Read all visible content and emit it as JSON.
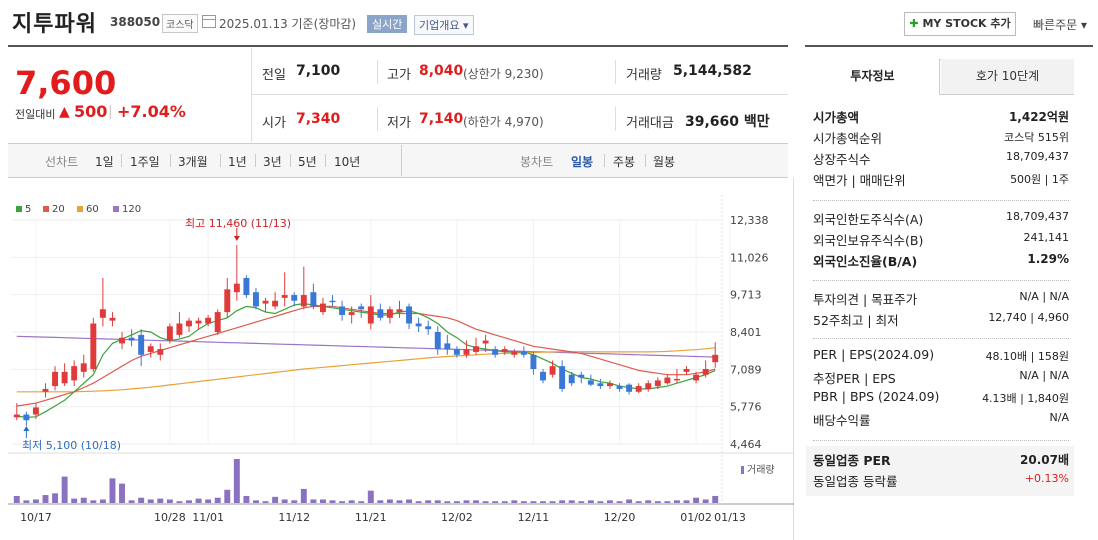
{
  "header": {
    "stock_name": "지투파워",
    "stock_code": "388050",
    "market": "코스닥",
    "ref_date": "2025.01.13  기준(장마감)",
    "realtime_label": "실시간",
    "company_overview_label": "기업개요 ▾",
    "mystock_label": "MY STOCK 추가",
    "quick_order_label": "빠른주문 ▾"
  },
  "price": {
    "current": "7,600",
    "change_label": "전일대비",
    "change_arrow": "▲",
    "change_amount": "500",
    "change_sep": "|",
    "change_pct": "+7.04%"
  },
  "summary": {
    "prev_close_label": "전일",
    "prev_close": "7,100",
    "high_label": "고가",
    "high": "8,040",
    "upper_limit": "(상한가 9,230)",
    "volume_label": "거래량",
    "volume": "5,144,582",
    "open_label": "시가",
    "open": "7,340",
    "low_label": "저가",
    "low": "7,140",
    "lower_limit": "(하한가 4,970)",
    "amount_label": "거래대금",
    "amount": "39,660 백만"
  },
  "period_tabs": {
    "line_label": "선차트",
    "line_items": [
      "1일",
      "1주일",
      "3개월",
      "1년",
      "3년",
      "5년",
      "10년"
    ],
    "candle_label": "봉차트",
    "candle_items": [
      "일봉",
      "주봉",
      "월봉"
    ],
    "candle_selected": "일봉"
  },
  "chart_data": {
    "type": "candlestick",
    "ma_legend": [
      {
        "name": "5",
        "color": "#3aa33a"
      },
      {
        "name": "20",
        "color": "#e05a4e"
      },
      {
        "name": "60",
        "color": "#e8a23a"
      },
      {
        "name": "120",
        "color": "#9b74c9"
      }
    ],
    "y_ticks": [
      "12,338",
      "11,026",
      "9,713",
      "8,401",
      "7,089",
      "5,776",
      "4,464"
    ],
    "ylim": [
      4464,
      12338
    ],
    "x_labels": [
      "10/17",
      "10/28",
      "11/01",
      "11/12",
      "11/21",
      "12/02",
      "12/11",
      "12/20",
      "01/02",
      "01/13"
    ],
    "annotation_high": "최고 11,460 (11/13)",
    "annotation_low": "최저 5,100 (10/18)",
    "volume_label": "거래량",
    "candles": [
      [
        5400,
        5900,
        5300,
        5500
      ],
      [
        5500,
        5600,
        5100,
        5300
      ],
      [
        5500,
        5900,
        5350,
        5750
      ],
      [
        6300,
        6600,
        6100,
        6400
      ],
      [
        6500,
        7200,
        6350,
        7000
      ],
      [
        6600,
        7300,
        6500,
        7000
      ],
      [
        6700,
        7400,
        6500,
        7200
      ],
      [
        7000,
        7600,
        6800,
        7300
      ],
      [
        7100,
        8900,
        7000,
        8700
      ],
      [
        8900,
        10300,
        8600,
        9200
      ],
      [
        8800,
        9100,
        8600,
        8900
      ],
      [
        8000,
        8400,
        7800,
        8200
      ],
      [
        8200,
        8500,
        7900,
        8100
      ],
      [
        8300,
        8500,
        7200,
        7600
      ],
      [
        7700,
        8000,
        7500,
        7900
      ],
      [
        7600,
        8000,
        7400,
        7800
      ],
      [
        8100,
        8700,
        8000,
        8600
      ],
      [
        8300,
        9100,
        8200,
        8700
      ],
      [
        8600,
        8900,
        8400,
        8800
      ],
      [
        8700,
        8900,
        8500,
        8800
      ],
      [
        8700,
        9000,
        8600,
        8900
      ],
      [
        8400,
        9200,
        8300,
        9100
      ],
      [
        9100,
        10300,
        8900,
        9900
      ],
      [
        9800,
        11460,
        9500,
        10100
      ],
      [
        10300,
        10400,
        9600,
        9700
      ],
      [
        9800,
        9950,
        9200,
        9300
      ],
      [
        9400,
        9600,
        9100,
        9500
      ],
      [
        9300,
        9800,
        9200,
        9500
      ],
      [
        9600,
        10500,
        9300,
        9700
      ],
      [
        9700,
        9800,
        9300,
        9500
      ],
      [
        9300,
        10700,
        9200,
        9700
      ],
      [
        9800,
        10100,
        9200,
        9300
      ],
      [
        9100,
        9600,
        9000,
        9400
      ],
      [
        9500,
        9700,
        9300,
        9450
      ],
      [
        9300,
        9500,
        8800,
        9000
      ],
      [
        9000,
        9300,
        8700,
        9100
      ],
      [
        9300,
        9400,
        8900,
        9200
      ],
      [
        8700,
        9700,
        8500,
        9300
      ],
      [
        9200,
        9400,
        8800,
        8900
      ],
      [
        8900,
        9300,
        8700,
        9200
      ],
      [
        9100,
        9500,
        8900,
        9200
      ],
      [
        9300,
        9400,
        8500,
        8700
      ],
      [
        8700,
        8900,
        8400,
        8600
      ],
      [
        8600,
        8800,
        8300,
        8500
      ],
      [
        8400,
        8600,
        7600,
        7800
      ],
      [
        8000,
        8300,
        7600,
        7800
      ],
      [
        7800,
        7900,
        7500,
        7600
      ],
      [
        7600,
        8100,
        7500,
        7800
      ],
      [
        7700,
        8200,
        7600,
        7900
      ],
      [
        8000,
        8300,
        7700,
        8100
      ],
      [
        7800,
        7900,
        7500,
        7600
      ],
      [
        7700,
        7900,
        7600,
        7800
      ],
      [
        7600,
        7800,
        7500,
        7700
      ],
      [
        7700,
        7900,
        7500,
        7600
      ],
      [
        7600,
        7700,
        6900,
        7100
      ],
      [
        7000,
        7100,
        6600,
        6700
      ],
      [
        6900,
        7400,
        6800,
        7200
      ],
      [
        7200,
        7400,
        6300,
        6400
      ],
      [
        6900,
        7000,
        6500,
        6600
      ],
      [
        6900,
        7000,
        6600,
        6800
      ],
      [
        6700,
        6900,
        6500,
        6550
      ],
      [
        6600,
        6750,
        6400,
        6500
      ],
      [
        6500,
        6700,
        6400,
        6600
      ],
      [
        6500,
        6600,
        6300,
        6400
      ],
      [
        6550,
        6600,
        6200,
        6300
      ],
      [
        6300,
        6600,
        6250,
        6500
      ],
      [
        6400,
        6700,
        6300,
        6600
      ],
      [
        6500,
        6800,
        6400,
        6700
      ],
      [
        6600,
        6900,
        6550,
        6800
      ],
      [
        6700,
        7100,
        6600,
        6750
      ],
      [
        7000,
        7200,
        6900,
        7100
      ],
      [
        6700,
        7000,
        6600,
        6900
      ],
      [
        6900,
        7400,
        6800,
        7100
      ],
      [
        7340,
        8040,
        7140,
        7600
      ]
    ],
    "volumes": [
      8,
      3,
      4,
      9,
      11,
      30,
      5,
      6,
      3,
      4,
      28,
      22,
      3,
      6,
      4,
      5,
      4,
      2,
      3,
      5,
      4,
      6,
      15,
      50,
      8,
      3,
      2,
      7,
      4,
      3,
      16,
      4,
      4,
      3,
      2,
      3,
      2,
      14,
      3,
      4,
      3,
      4,
      2,
      3,
      3,
      2,
      2,
      3,
      3,
      2,
      2,
      2,
      3,
      2,
      2,
      2,
      2,
      3,
      3,
      2,
      3,
      2,
      3,
      2,
      4,
      2,
      3,
      2,
      2,
      3,
      3,
      6,
      4,
      8
    ],
    "ma5": [
      5450,
      5400,
      5420,
      5600,
      5800,
      6000,
      6300,
      6600,
      6900,
      7600,
      8000,
      8150,
      8300,
      8450,
      8400,
      8200,
      8100,
      8150,
      8250,
      8500,
      8700,
      8800,
      8900,
      9150,
      9300,
      9250,
      9100,
      9050,
      9200,
      9350,
      9400,
      9350,
      9300,
      9250,
      9200,
      9150,
      9100,
      9050,
      9000,
      9000,
      9100,
      9150,
      9050,
      8900,
      8700,
      8400,
      8200,
      7950,
      7850,
      7800,
      7750,
      7700,
      7700,
      7700,
      7600,
      7450,
      7300,
      7100,
      6950,
      6800,
      6750,
      6650,
      6600,
      6500,
      6450,
      6400,
      6400,
      6450,
      6500,
      6600,
      6700,
      6800,
      6900,
      7050
    ],
    "ma20": [
      5800,
      5850,
      5900,
      6000,
      6100,
      6200,
      6300,
      6450,
      6600,
      6800,
      7000,
      7200,
      7400,
      7550,
      7650,
      7750,
      7850,
      7950,
      8050,
      8150,
      8250,
      8350,
      8450,
      8550,
      8650,
      8750,
      8850,
      8950,
      9050,
      9150,
      9250,
      9300,
      9300,
      9300,
      9250,
      9200,
      9150,
      9100,
      9050,
      9050,
      9050,
      9050,
      9050,
      9000,
      8950,
      8900,
      8800,
      8650,
      8500,
      8400,
      8300,
      8200,
      8100,
      8000,
      7900,
      7850,
      7800,
      7750,
      7700,
      7650,
      7550,
      7450,
      7350,
      7250,
      7150,
      7050,
      7000,
      6950,
      6900,
      6900,
      6900,
      6950,
      7000,
      7100
    ],
    "ma60": [
      6300,
      6300,
      6300,
      6300,
      6300,
      6300,
      6300,
      6310,
      6320,
      6330,
      6350,
      6370,
      6400,
      6430,
      6460,
      6500,
      6540,
      6580,
      6620,
      6660,
      6700,
      6740,
      6780,
      6820,
      6860,
      6900,
      6940,
      6980,
      7020,
      7060,
      7100,
      7130,
      7160,
      7190,
      7220,
      7250,
      7280,
      7310,
      7340,
      7370,
      7400,
      7430,
      7460,
      7490,
      7520,
      7540,
      7560,
      7580,
      7600,
      7620,
      7640,
      7650,
      7660,
      7670,
      7680,
      7690,
      7700,
      7710,
      7710,
      7710,
      7710,
      7700,
      7700,
      7700,
      7700,
      7700,
      7700,
      7710,
      7720,
      7740,
      7760,
      7780,
      7810,
      7850
    ],
    "ma120": [
      8250,
      8240,
      8230,
      8220,
      8210,
      8200,
      8190,
      8180,
      8170,
      8160,
      8150,
      8140,
      8130,
      8120,
      8110,
      8100,
      8090,
      8080,
      8070,
      8060,
      8050,
      8040,
      8030,
      8020,
      8010,
      8000,
      7990,
      7980,
      7970,
      7960,
      7950,
      7940,
      7930,
      7920,
      7910,
      7900,
      7890,
      7880,
      7870,
      7860,
      7850,
      7840,
      7830,
      7820,
      7810,
      7800,
      7790,
      7780,
      7770,
      7760,
      7750,
      7740,
      7730,
      7720,
      7710,
      7700,
      7690,
      7680,
      7670,
      7660,
      7650,
      7640,
      7630,
      7620,
      7610,
      7600,
      7590,
      7580,
      7570,
      7560,
      7550,
      7540,
      7530,
      7520
    ]
  },
  "invest_panel": {
    "tab_info": "투자정보",
    "tab_hoga": "호가 10단계",
    "rows1": [
      {
        "label": "시가총액",
        "value": "1,422억원",
        "bold": true
      },
      {
        "label": "시가총액순위",
        "value": "코스닥 515위"
      },
      {
        "label": "상장주식수",
        "value": "18,709,437"
      },
      {
        "label": "액면가 | 매매단위",
        "value": "500원 | 1주"
      }
    ],
    "rows2": [
      {
        "label": "외국인한도주식수(A)",
        "value": "18,709,437"
      },
      {
        "label": "외국인보유주식수(B)",
        "value": "241,141"
      },
      {
        "label": "외국인소진율(B/A)",
        "value": "1.29%",
        "bold": true
      }
    ],
    "rows3": [
      {
        "label": "투자의견 | 목표주가",
        "value": "N/A | N/A"
      },
      {
        "label": "52주최고 | 최저",
        "value": "12,740 | 4,960"
      }
    ],
    "rows4": [
      {
        "label": "PER | EPS(2024.09)",
        "value": "48.10배 | 158원"
      },
      {
        "label": "추정PER | EPS",
        "value": "N/A | N/A"
      },
      {
        "label": "PBR | BPS (2024.09)",
        "value": "4.13배 | 1,840원"
      },
      {
        "label": "배당수익률",
        "value": "N/A"
      }
    ],
    "rows5": [
      {
        "label": "동일업종 PER",
        "value": "20.07배",
        "bold": true
      },
      {
        "label": "동일업종 등락률",
        "value": "+0.13%",
        "up": true
      }
    ]
  }
}
